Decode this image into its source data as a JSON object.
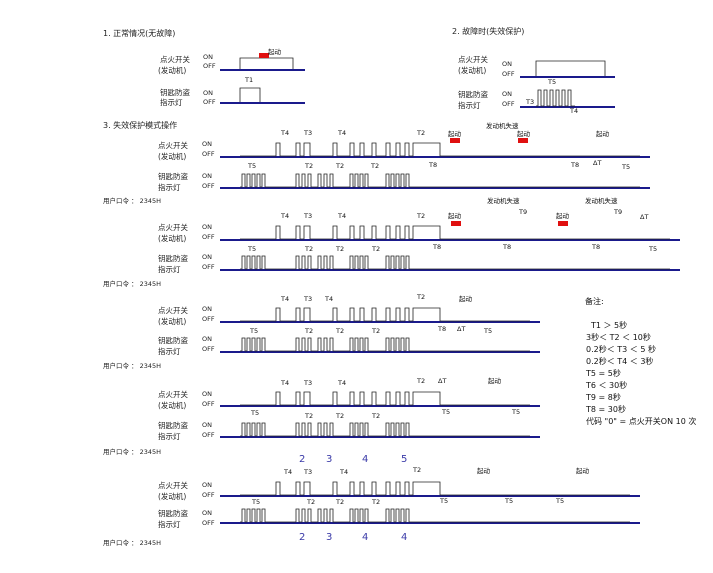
{
  "section1": {
    "title": "1. 正常情况(无故障)"
  },
  "section2": {
    "title": "2. 故障时(失效保护)"
  },
  "section3": {
    "title": "3. 失效保护模式操作"
  },
  "signals": {
    "ignition_line1": "点火开关",
    "ignition_line2": "(发动机)",
    "key_line1": "钥匙防盗",
    "key_line2": "指示灯",
    "on": "ON",
    "off": "OFF"
  },
  "labels": {
    "start": "起动",
    "stall": "发动机失速",
    "delta_t": "ΔT",
    "T1": "T1",
    "T2": "T2",
    "T3": "T3",
    "T4": "T4",
    "T5": "T5",
    "T8": "T8",
    "T9": "T9"
  },
  "user_code": "用户口令 ： 2345H",
  "digits_top": [
    "2",
    "3",
    "4",
    "5"
  ],
  "digits_bottom": [
    "2",
    "3",
    "4",
    "4"
  ],
  "notes": {
    "title": "备注:",
    "lines": [
      "T1 ＞ 5秒",
      "3秒＜ T2 ＜ 10秒",
      "0.2秒＜ T3 ＜ 5 秒",
      "0.2秒＜ T4 ＜ 3秒",
      "T5 = 5秒",
      "T6 ＜ 30秒",
      "T9 = 8秒",
      "T8 = 30秒",
      "代码 \"0\" = 点火开关ON 10 次"
    ]
  },
  "colors": {
    "baseline": "#1a1a8c",
    "start_marker": "#e01010",
    "digit": "#3a3aa8"
  }
}
